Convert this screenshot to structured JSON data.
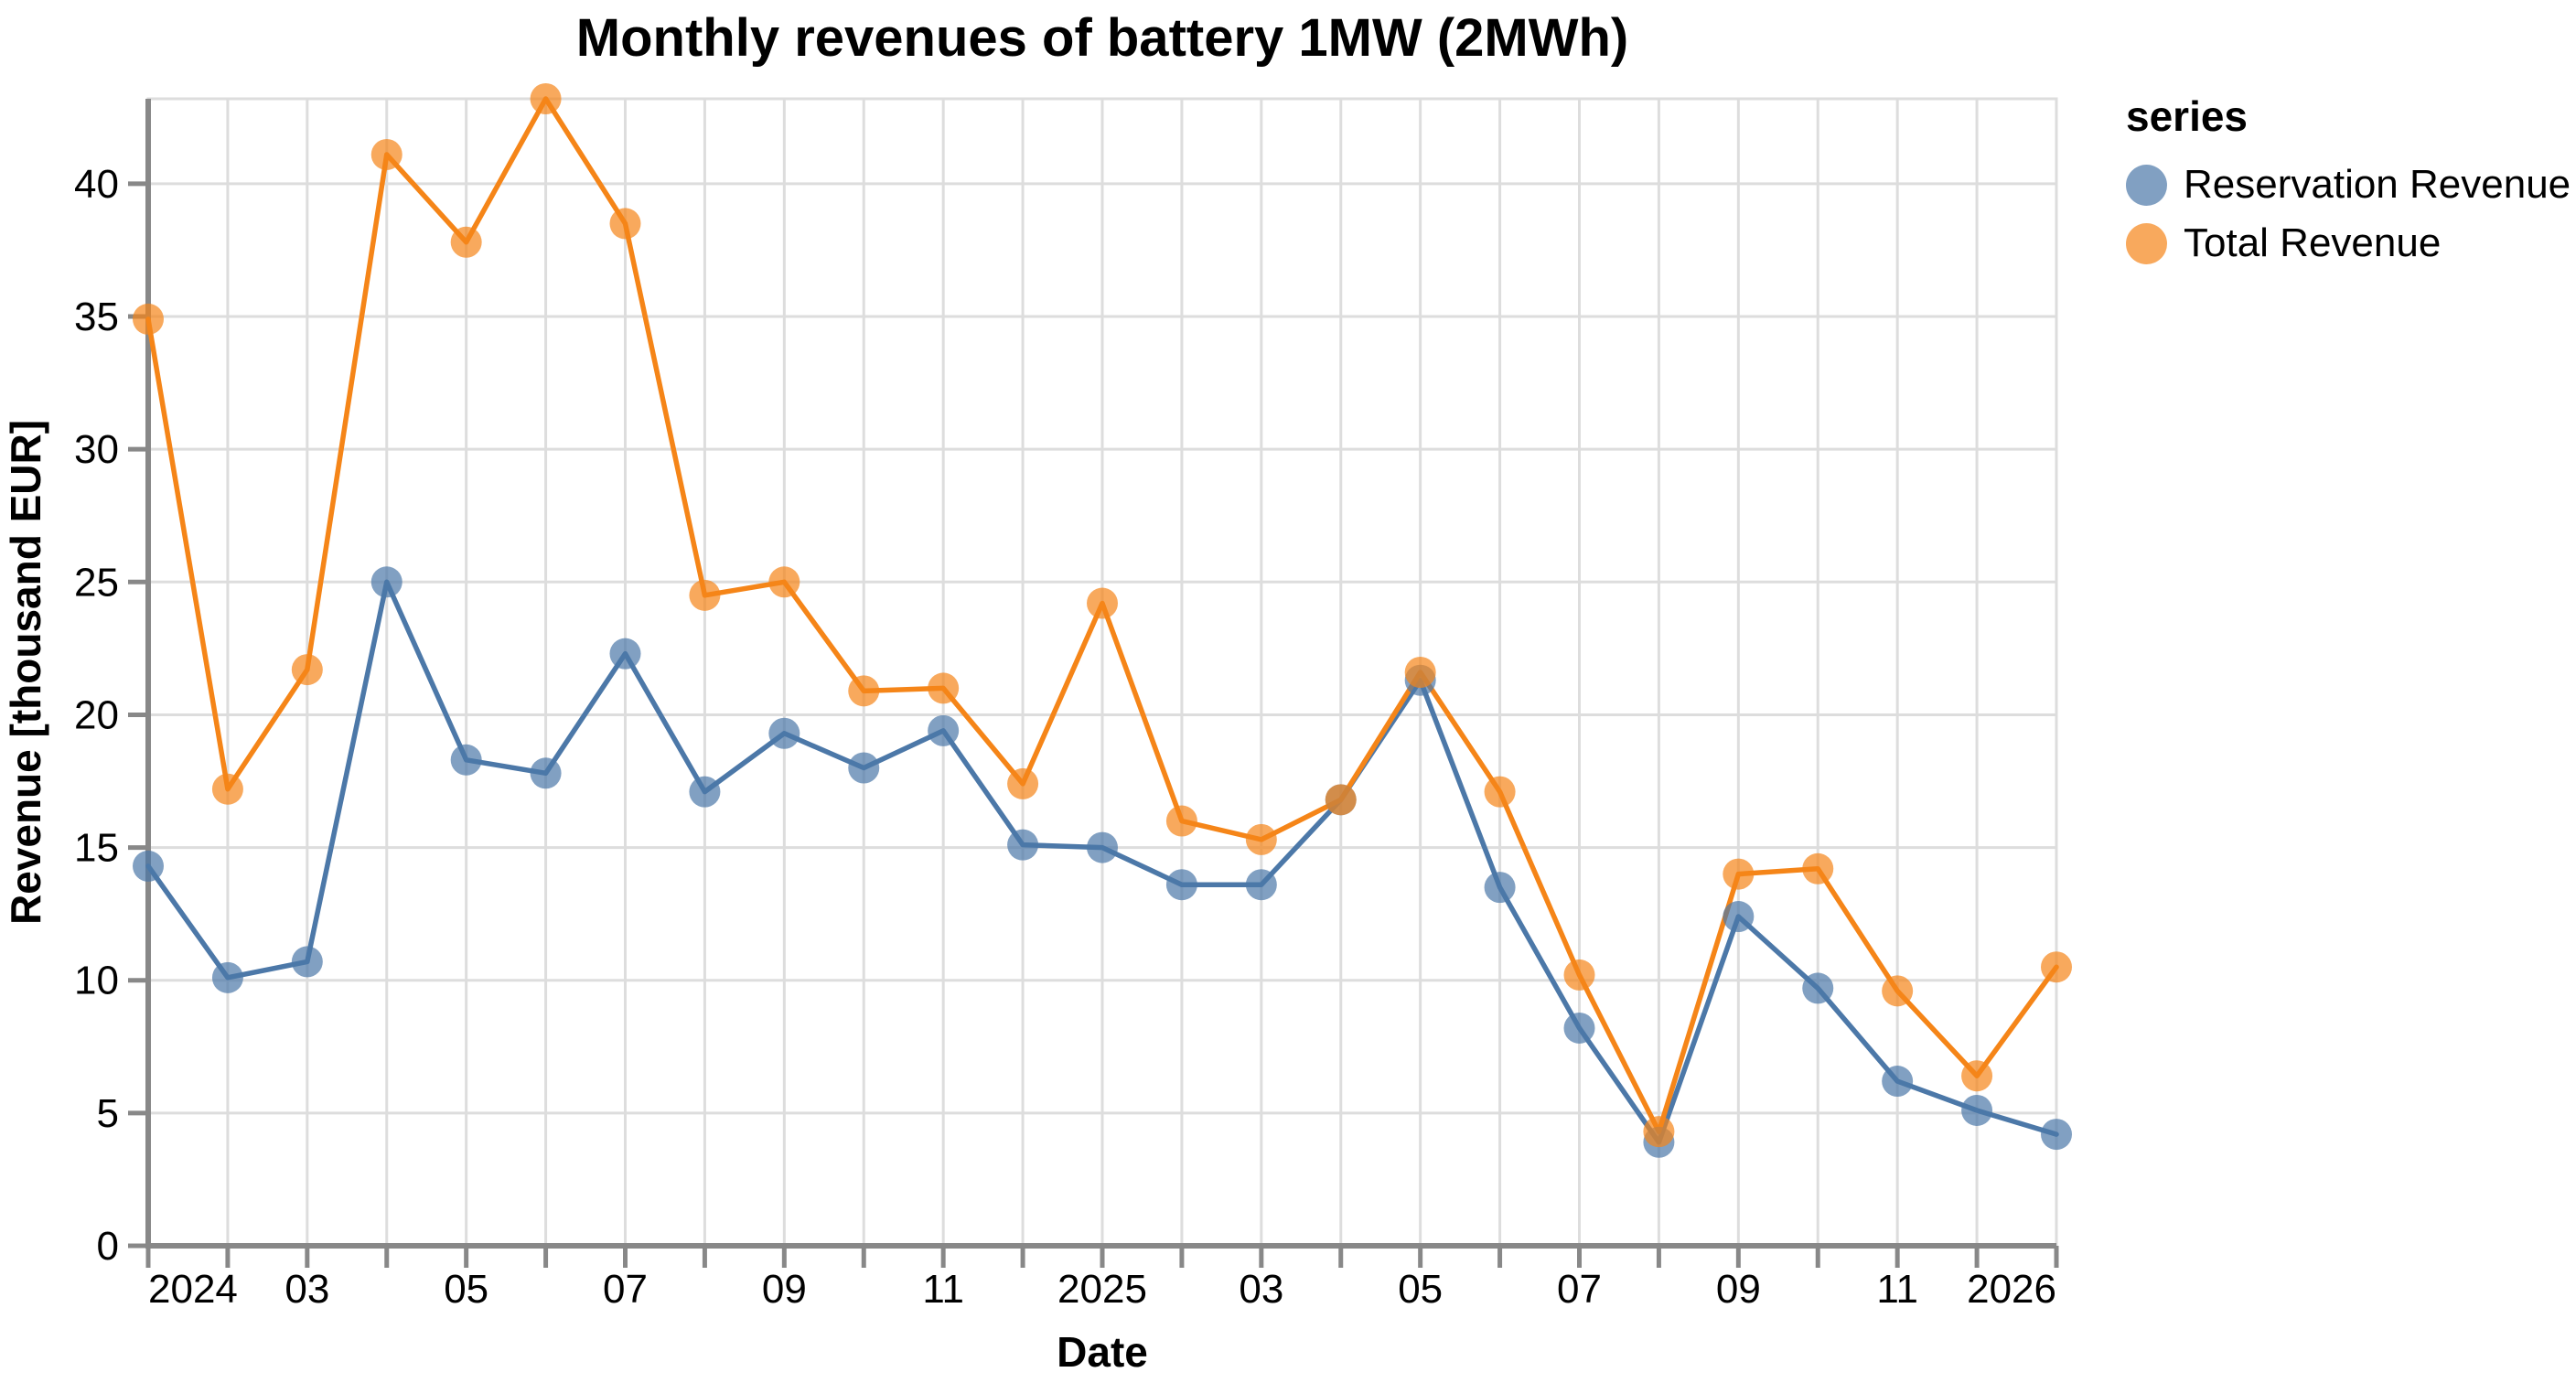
{
  "chart_data": {
    "type": "line",
    "title": "Monthly revenues of battery 1MW (2MWh)",
    "xlabel": "Date",
    "ylabel": "Revenue [thousand EUR]",
    "categories": [
      "2024-01",
      "2024-02",
      "2024-03",
      "2024-04",
      "2024-05",
      "2024-06",
      "2024-07",
      "2024-08",
      "2024-09",
      "2024-10",
      "2024-11",
      "2024-12",
      "2025-01",
      "2025-02",
      "2025-03",
      "2025-04",
      "2025-05",
      "2025-06",
      "2025-07",
      "2025-08",
      "2025-09",
      "2025-10",
      "2025-11",
      "2025-12",
      "2026-01"
    ],
    "series": [
      {
        "name": "Reservation Revenue",
        "color": "#4C78A8",
        "values": [
          14.3,
          10.1,
          10.7,
          25.0,
          18.3,
          17.8,
          22.3,
          17.1,
          19.3,
          18.0,
          19.4,
          15.1,
          15.0,
          13.6,
          13.6,
          16.8,
          21.3,
          13.5,
          8.2,
          3.9,
          12.4,
          9.7,
          6.2,
          5.1,
          4.2
        ]
      },
      {
        "name": "Total Revenue",
        "color": "#F58518",
        "values": [
          34.9,
          17.2,
          21.7,
          41.1,
          37.8,
          43.2,
          38.5,
          24.5,
          25.0,
          20.9,
          21.0,
          17.4,
          24.2,
          16.0,
          15.3,
          16.8,
          21.6,
          17.1,
          10.2,
          4.3,
          14.0,
          14.2,
          9.6,
          6.4,
          10.5
        ]
      }
    ],
    "ylim": [
      0,
      43.2
    ],
    "yticks": [
      0,
      5,
      10,
      15,
      20,
      25,
      30,
      35,
      40
    ],
    "xtick_labels": [
      "2024",
      "03",
      "05",
      "07",
      "09",
      "11",
      "2025",
      "03",
      "05",
      "07",
      "09",
      "11",
      "2026"
    ],
    "grid": true,
    "legend_title": "series",
    "legend_position": "right",
    "background_color": "#FFFFFF",
    "grid_color": "#DDDDDD",
    "axis_color": "#888888"
  }
}
